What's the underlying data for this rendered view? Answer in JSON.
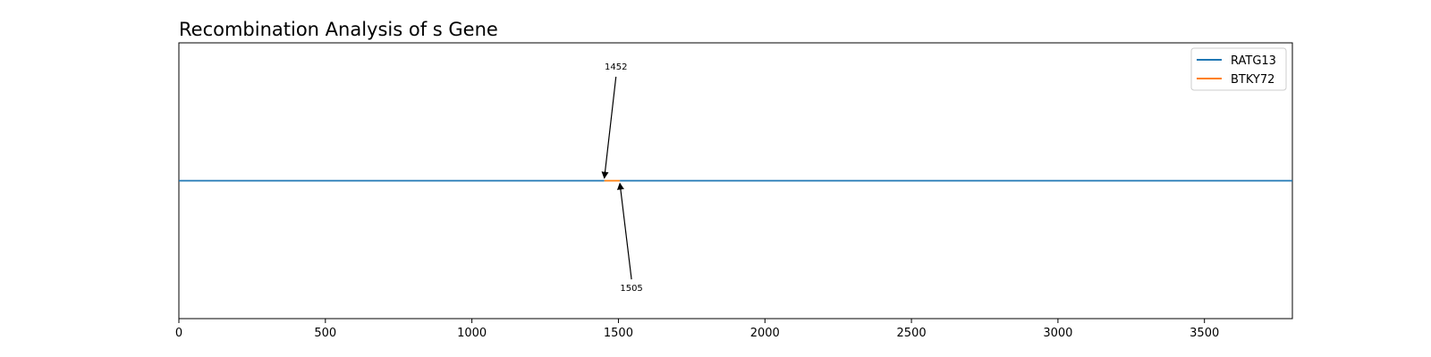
{
  "chart_data": {
    "type": "line",
    "title": "Recombination Analysis of s Gene",
    "xlabel": "",
    "ylabel": "",
    "xlim": [
      0,
      3800
    ],
    "ylim": [
      -1,
      1
    ],
    "xticks": [
      0,
      500,
      1000,
      1500,
      2000,
      2500,
      3000,
      3500
    ],
    "yticks_visible": false,
    "grid": false,
    "legend_position": "top-right",
    "series": [
      {
        "name": "RATG13",
        "color": "#1f77b4",
        "segments": [
          {
            "x": [
              0,
              1452
            ],
            "y": [
              0,
              0
            ]
          },
          {
            "x": [
              1505,
              3800
            ],
            "y": [
              0,
              0
            ]
          }
        ]
      },
      {
        "name": "BTKY72",
        "color": "#ff7f0e",
        "segments": [
          {
            "x": [
              1452,
              1505
            ],
            "y": [
              0,
              0
            ]
          }
        ]
      }
    ],
    "annotations": [
      {
        "label": "1452",
        "x": 1452,
        "y": 0,
        "side": "above"
      },
      {
        "label": "1505",
        "x": 1505,
        "y": 0,
        "side": "below"
      }
    ]
  }
}
